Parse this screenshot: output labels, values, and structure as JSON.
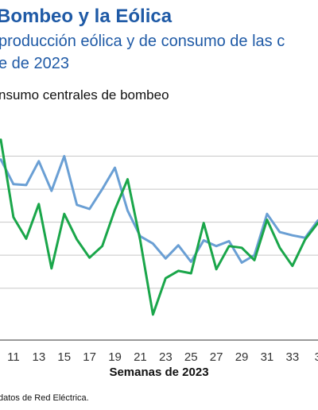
{
  "header": {
    "title": "Bombeo y la Eólica",
    "subtitle_line1": "producción eólica y de consumo de las c",
    "subtitle_line2": "e de 2023"
  },
  "legend": {
    "visible_text": "nsumo centrales de bombeo"
  },
  "footer": {
    "source": "datos de Red Eléctrica."
  },
  "colors": {
    "blue_series": "#6a9fd4",
    "green_series": "#1aa64a",
    "grid": "#c8c8c8",
    "title": "#1f5aa6"
  },
  "chart_data": {
    "type": "line",
    "xlabel": "Semanas de 2023",
    "ylabel": "",
    "x": [
      10,
      11,
      12,
      13,
      14,
      15,
      16,
      17,
      18,
      19,
      20,
      21,
      22,
      23,
      24,
      25,
      26,
      27,
      28,
      29,
      30,
      31,
      32,
      33,
      34,
      35
    ],
    "x_tick_labels": [
      "11",
      "13",
      "15",
      "17",
      "19",
      "21",
      "23",
      "25",
      "27",
      "29",
      "31",
      "33",
      "3"
    ],
    "grid": "horizontal",
    "series": [
      {
        "color": "#6a9fd4",
        "values": [
          7.8,
          6.3,
          6.25,
          7.7,
          5.9,
          8.0,
          5.05,
          4.8,
          6.0,
          7.3,
          4.7,
          3.15,
          2.7,
          1.8,
          2.6,
          1.6,
          2.9,
          2.55,
          2.85,
          1.55,
          2.0,
          4.5,
          3.4,
          3.2,
          3.05,
          4.1
        ]
      },
      {
        "color": "#1aa64a",
        "values": [
          9.0,
          4.3,
          3.0,
          5.1,
          1.2,
          4.5,
          2.95,
          1.85,
          2.55,
          4.75,
          6.6,
          2.9,
          -1.6,
          0.6,
          1.05,
          0.9,
          3.95,
          1.15,
          2.55,
          2.45,
          1.7,
          4.15,
          2.45,
          1.35,
          2.95,
          3.95
        ]
      }
    ],
    "ylim": [
      -3,
      10
    ]
  }
}
